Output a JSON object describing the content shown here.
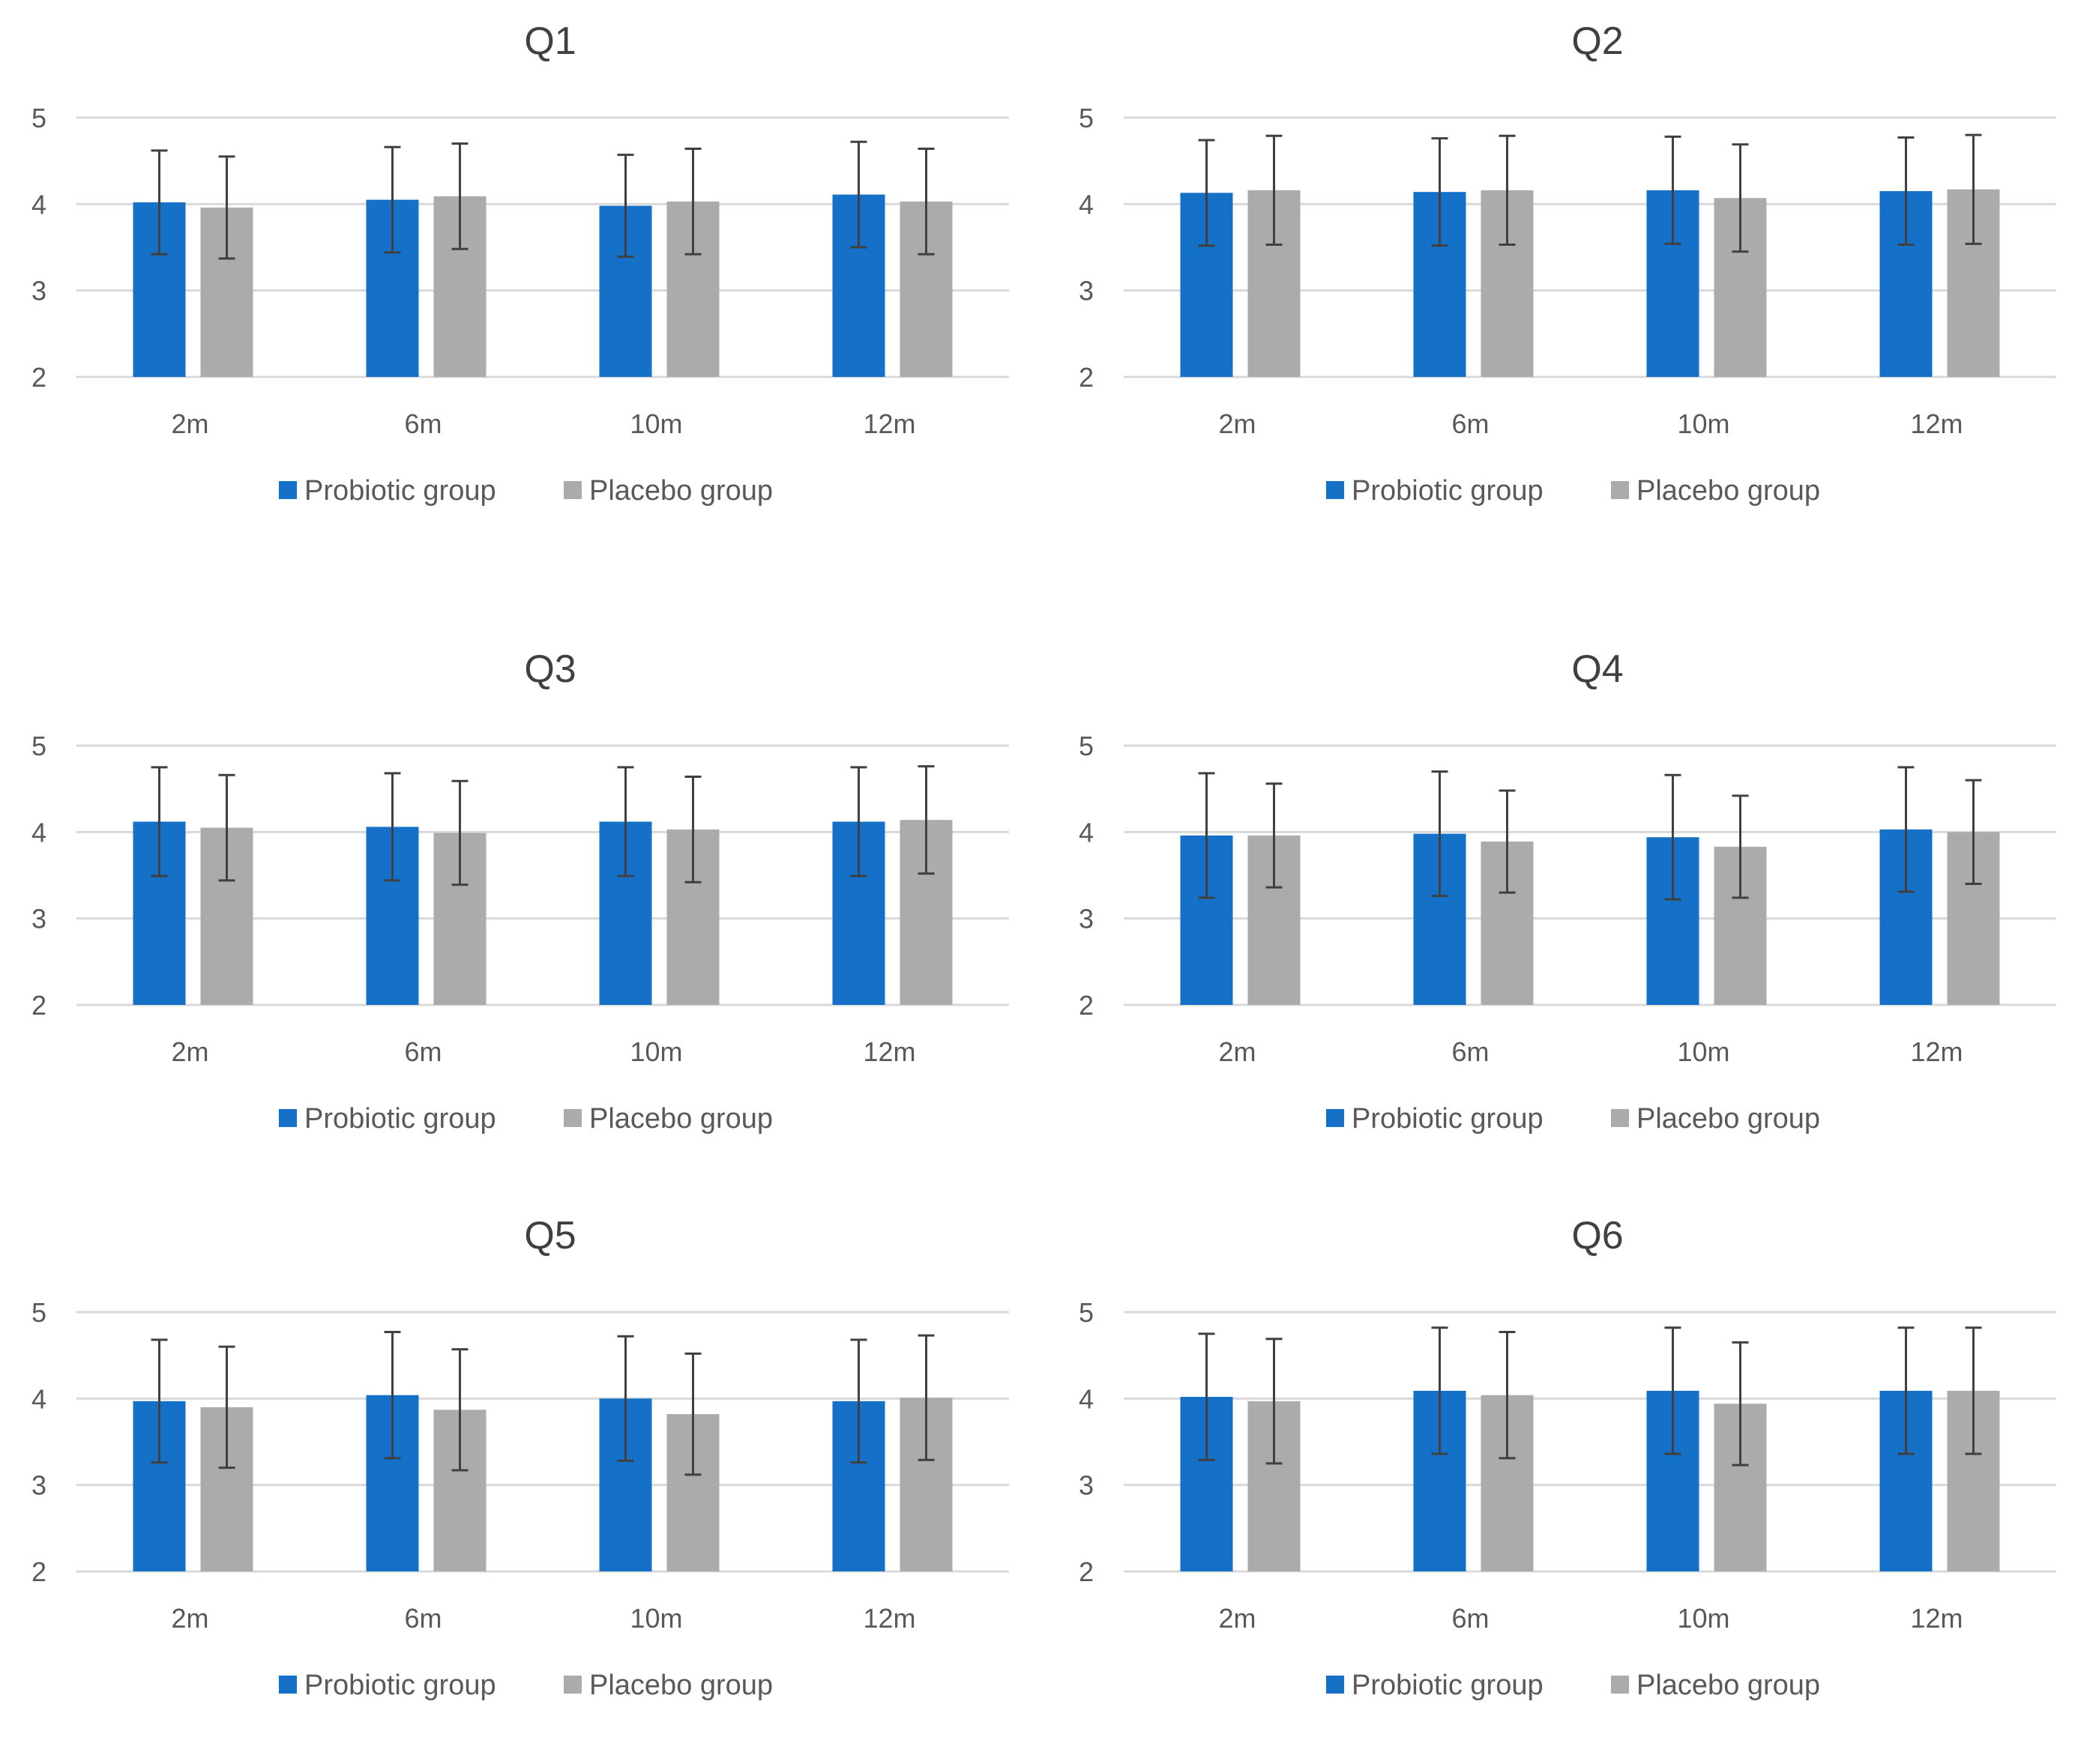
{
  "colors": {
    "probiotic": "#1570C8",
    "placebo": "#ABABAB",
    "grid": "#D9D9D9",
    "axis_text": "#595959",
    "error_bar": "#404040"
  },
  "chart_data": [
    {
      "type": "bar",
      "title": "Q1",
      "categories": [
        "2m",
        "6m",
        "10m",
        "12m"
      ],
      "ylim": [
        2,
        5
      ],
      "yticks": [
        "2",
        "3",
        "4",
        "5"
      ],
      "legend": "bottom",
      "series": [
        {
          "name": "Probiotic group",
          "values": [
            4.02,
            4.05,
            3.98,
            4.11
          ],
          "errors": [
            0.6,
            0.61,
            0.59,
            0.61
          ]
        },
        {
          "name": "Placebo group",
          "values": [
            3.96,
            4.09,
            4.03,
            4.03
          ],
          "errors": [
            0.59,
            0.61,
            0.61,
            0.61
          ]
        }
      ]
    },
    {
      "type": "bar",
      "title": "Q2",
      "categories": [
        "2m",
        "6m",
        "10m",
        "12m"
      ],
      "ylim": [
        2,
        5
      ],
      "yticks": [
        "2",
        "3",
        "4",
        "5"
      ],
      "legend": "bottom",
      "series": [
        {
          "name": "Probiotic group",
          "values": [
            4.13,
            4.14,
            4.16,
            4.15
          ],
          "errors": [
            0.61,
            0.62,
            0.62,
            0.62
          ]
        },
        {
          "name": "Placebo group",
          "values": [
            4.16,
            4.16,
            4.07,
            4.17
          ],
          "errors": [
            0.63,
            0.63,
            0.62,
            0.63
          ]
        }
      ]
    },
    {
      "type": "bar",
      "title": "Q3",
      "categories": [
        "2m",
        "6m",
        "10m",
        "12m"
      ],
      "ylim": [
        2,
        5
      ],
      "yticks": [
        "2",
        "3",
        "4",
        "5"
      ],
      "legend": "bottom",
      "series": [
        {
          "name": "Probiotic group",
          "values": [
            4.12,
            4.06,
            4.12,
            4.12
          ],
          "errors": [
            0.63,
            0.62,
            0.63,
            0.63
          ]
        },
        {
          "name": "Placebo group",
          "values": [
            4.05,
            3.99,
            4.03,
            4.14
          ],
          "errors": [
            0.61,
            0.6,
            0.61,
            0.62
          ]
        }
      ]
    },
    {
      "type": "bar",
      "title": "Q4",
      "categories": [
        "2m",
        "6m",
        "10m",
        "12m"
      ],
      "ylim": [
        2,
        5
      ],
      "yticks": [
        "2",
        "3",
        "4",
        "5"
      ],
      "legend": "bottom",
      "series": [
        {
          "name": "Probiotic group",
          "values": [
            3.96,
            3.98,
            3.94,
            4.03
          ],
          "errors": [
            0.72,
            0.72,
            0.72,
            0.72
          ]
        },
        {
          "name": "Placebo group",
          "values": [
            3.96,
            3.89,
            3.83,
            4.0
          ],
          "errors": [
            0.6,
            0.59,
            0.59,
            0.6
          ]
        }
      ]
    },
    {
      "type": "bar",
      "title": "Q5",
      "categories": [
        "2m",
        "6m",
        "10m",
        "12m"
      ],
      "ylim": [
        2,
        5
      ],
      "yticks": [
        "2",
        "3",
        "4",
        "5"
      ],
      "legend": "bottom",
      "series": [
        {
          "name": "Probiotic group",
          "values": [
            3.97,
            4.04,
            4.0,
            3.97
          ],
          "errors": [
            0.71,
            0.73,
            0.72,
            0.71
          ]
        },
        {
          "name": "Placebo group",
          "values": [
            3.9,
            3.87,
            3.82,
            4.01
          ],
          "errors": [
            0.7,
            0.7,
            0.7,
            0.72
          ]
        }
      ]
    },
    {
      "type": "bar",
      "title": "Q6",
      "categories": [
        "2m",
        "6m",
        "10m",
        "12m"
      ],
      "ylim": [
        2,
        5
      ],
      "yticks": [
        "2",
        "3",
        "4",
        "5"
      ],
      "legend": "bottom",
      "series": [
        {
          "name": "Probiotic group",
          "values": [
            4.02,
            4.09,
            4.09,
            4.09
          ],
          "errors": [
            0.73,
            0.73,
            0.73,
            0.73
          ]
        },
        {
          "name": "Placebo group",
          "values": [
            3.97,
            4.04,
            3.94,
            4.09
          ],
          "errors": [
            0.72,
            0.73,
            0.71,
            0.73
          ]
        }
      ]
    }
  ]
}
